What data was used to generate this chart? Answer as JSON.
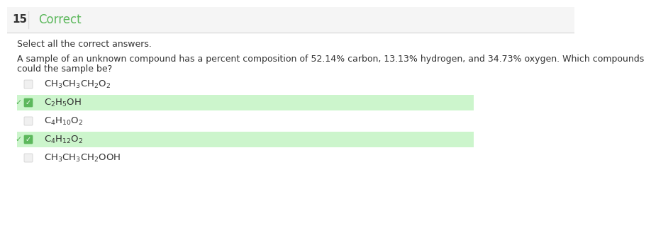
{
  "header_number": "15",
  "header_text": "Correct",
  "header_color": "#5cb85c",
  "instruction": "Select all the correct answers.",
  "question_line1": "A sample of an unknown compound has a percent composition of 52.14% carbon, 13.13% hydrogen, and 34.73% oxygen. Which compounds",
  "question_line2": "could the sample be?",
  "bg_color": "#ffffff",
  "header_line_color": "#dddddd",
  "options": [
    {
      "latex": "$\\mathrm{CH_3CH_3CH_2O_2}$",
      "checked": false,
      "correct": false,
      "bg": "#ffffff"
    },
    {
      "latex": "$\\mathrm{C_2H_5OH}$",
      "checked": true,
      "correct": true,
      "bg": "#ccf5cc"
    },
    {
      "latex": "$\\mathrm{C_4H_{10}O_2}$",
      "checked": false,
      "correct": false,
      "bg": "#ffffff"
    },
    {
      "latex": "$\\mathrm{C_4H_{12}O_2}$",
      "checked": true,
      "correct": true,
      "bg": "#ccf5cc"
    },
    {
      "latex": "$\\mathrm{CH_3CH_3CH_2OOH}$",
      "checked": false,
      "correct": false,
      "bg": "#ffffff"
    }
  ],
  "check_color": "#5cb85c",
  "checkbox_color": "#cccccc",
  "text_color": "#333333",
  "header_bg": "#f5f5f5"
}
